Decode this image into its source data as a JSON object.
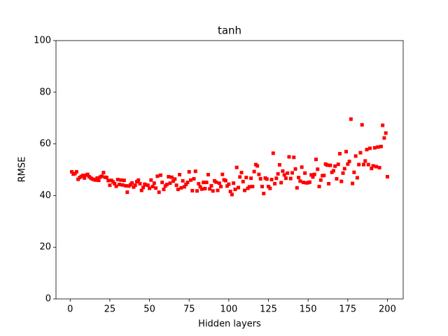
{
  "chart_data": {
    "type": "scatter",
    "title": "tanh",
    "x_label": "Hidden layers",
    "y_label": "RMSE",
    "color": "#ff0000",
    "x": [
      1,
      2,
      3,
      4,
      5,
      6,
      7,
      8,
      9,
      10,
      11,
      12,
      13,
      14,
      15,
      16,
      17,
      18,
      19,
      20,
      21,
      22,
      23,
      24,
      25,
      26,
      27,
      28,
      29,
      30,
      31,
      32,
      33,
      34,
      35,
      36,
      37,
      38,
      39,
      40,
      41,
      42,
      43,
      44,
      45,
      46,
      47,
      48,
      49,
      50,
      51,
      52,
      53,
      54,
      55,
      56,
      57,
      58,
      59,
      60,
      61,
      62,
      63,
      64,
      65,
      66,
      67,
      68,
      69,
      70,
      71,
      72,
      73,
      74,
      75,
      76,
      77,
      78,
      79,
      80,
      81,
      82,
      83,
      84,
      85,
      86,
      87,
      88,
      89,
      90,
      91,
      92,
      93,
      94,
      95,
      96,
      97,
      98,
      99,
      100,
      101,
      102,
      103,
      104,
      105,
      106,
      107,
      108,
      109,
      110,
      111,
      112,
      113,
      114,
      115,
      116,
      117,
      118,
      119,
      120,
      121,
      122,
      123,
      124,
      125,
      126,
      127,
      128,
      129,
      130,
      131,
      132,
      133,
      134,
      135,
      136,
      137,
      138,
      139,
      140,
      141,
      142,
      143,
      144,
      145,
      146,
      147,
      148,
      149,
      150,
      151,
      152,
      153,
      154,
      155,
      156,
      157,
      158,
      159,
      160,
      161,
      162,
      163,
      164,
      165,
      166,
      167,
      168,
      169,
      170,
      171,
      172,
      173,
      174,
      175,
      176,
      177,
      178,
      179,
      180,
      181,
      182,
      183,
      184,
      185,
      186,
      187,
      188,
      189,
      190,
      191,
      192,
      193,
      194,
      195,
      196,
      197,
      198,
      199,
      200
    ],
    "values": [
      49.2,
      48.3,
      48.5,
      49.2,
      46.3,
      47.0,
      47.4,
      47.8,
      46.8,
      47.9,
      48.2,
      47.3,
      46.8,
      46.4,
      46.2,
      46.0,
      46.8,
      45.9,
      47.2,
      47.5,
      48.9,
      47.1,
      47.0,
      45.8,
      44.0,
      45.9,
      45.3,
      44.6,
      43.6,
      46.2,
      44.3,
      46.0,
      44.1,
      45.9,
      43.8,
      41.3,
      43.7,
      44.2,
      44.9,
      43.3,
      44.0,
      45.4,
      46.0,
      44.6,
      42.0,
      43.1,
      44.4,
      44.1,
      44.0,
      42.8,
      46.0,
      43.5,
      44.8,
      42.9,
      47.5,
      41.3,
      47.9,
      45.1,
      42.4,
      43.7,
      44.3,
      47.3,
      44.8,
      47.1,
      45.6,
      46.4,
      44.0,
      42.4,
      48.1,
      43.0,
      45.7,
      43.4,
      44.3,
      45.1,
      49.2,
      46.0,
      41.9,
      46.5,
      49.4,
      41.8,
      44.6,
      43.4,
      42.5,
      45.1,
      42.7,
      45.1,
      48.1,
      42.6,
      43.8,
      41.8,
      45.7,
      45.2,
      42.0,
      44.8,
      43.5,
      48.2,
      46.1,
      45.8,
      43.7,
      44.4,
      41.6,
      40.4,
      44.8,
      42.4,
      50.9,
      43.1,
      47.2,
      48.9,
      45.4,
      42.0,
      47.0,
      42.8,
      43.4,
      46.7,
      43.5,
      49.3,
      52.0,
      51.5,
      48.2,
      46.5,
      43.5,
      40.8,
      46.8,
      46.4,
      43.5,
      42.8,
      46.2,
      56.4,
      44.6,
      46.7,
      48.4,
      51.9,
      45.0,
      49.5,
      48.0,
      46.7,
      48.7,
      55.0,
      46.6,
      48.8,
      54.8,
      50.3,
      43.0,
      47.0,
      45.6,
      51.0,
      45.1,
      48.7,
      44.9,
      45.0,
      45.2,
      48.0,
      47.2,
      48.2,
      54.0,
      50.2,
      43.5,
      46.0,
      47.7,
      47.8,
      52.2,
      51.8,
      44.6,
      51.7,
      49.0,
      49.6,
      51.4,
      46.5,
      52.1,
      56.2,
      45.5,
      48.7,
      50.4,
      57.0,
      52.2,
      53.2,
      69.6,
      44.7,
      49.0,
      55.3,
      46.9,
      52.0,
      56.6,
      67.4,
      52.0,
      53.4,
      57.8,
      52.0,
      58.3,
      50.5,
      51.5,
      58.5,
      51.2,
      58.8,
      50.8,
      59.0,
      67.2,
      62.3,
      64.2,
      47.3
    ],
    "xlim": [
      -8.95,
      209.95
    ],
    "xticks": [
      0,
      25,
      50,
      75,
      100,
      125,
      150,
      175,
      200
    ],
    "ylim": [
      0,
      100
    ],
    "yticks": [
      0,
      20,
      40,
      60,
      80,
      100
    ]
  }
}
